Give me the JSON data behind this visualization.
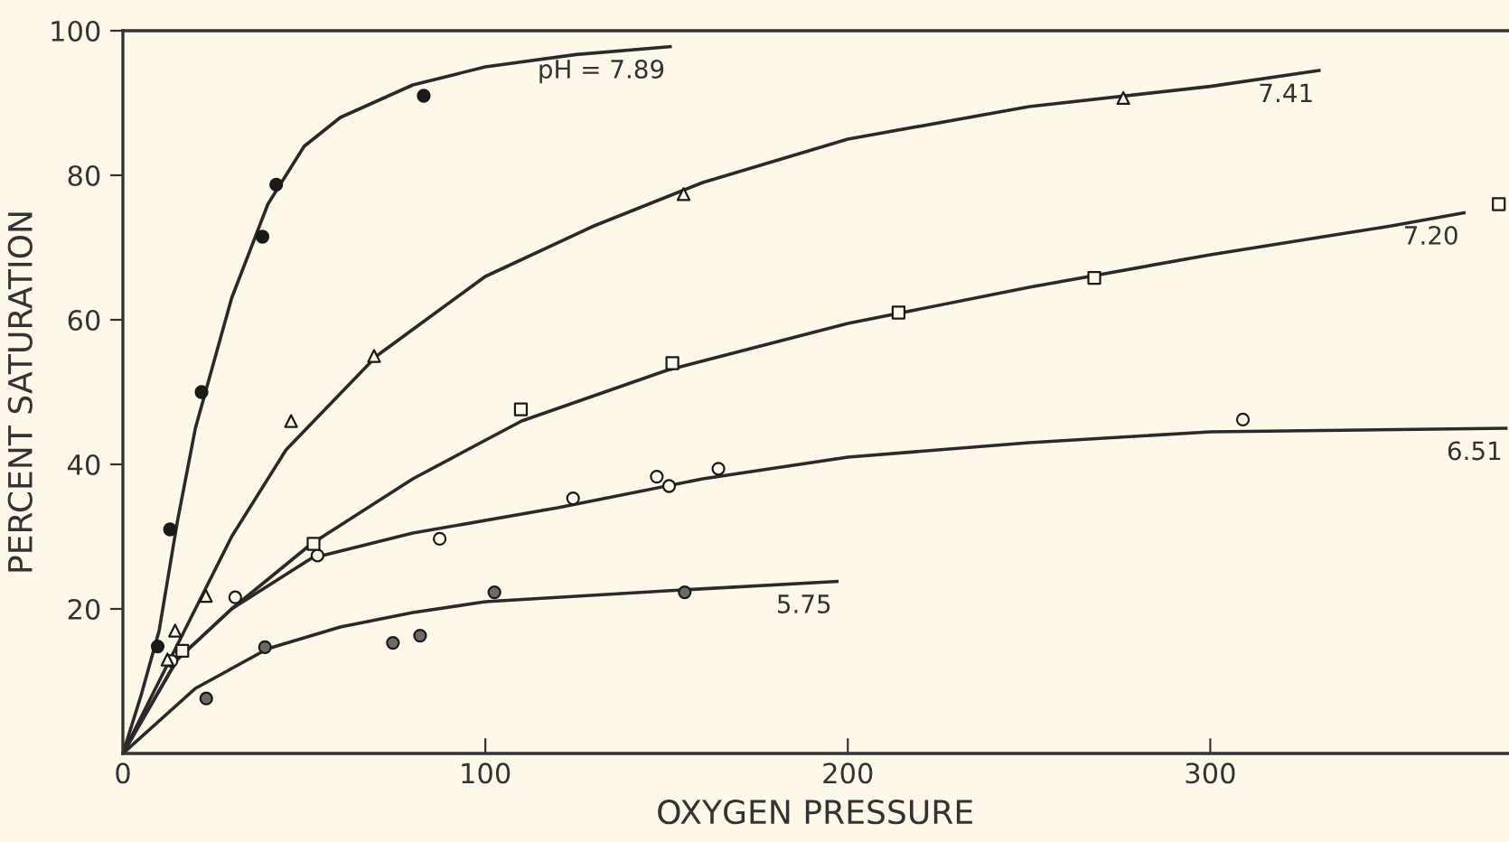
{
  "chart_data": {
    "type": "scatter",
    "xlabel": "OXYGEN PRESSURE",
    "ylabel": "PERCENT SATURATION",
    "xlim": [
      0,
      382
    ],
    "ylim": [
      0,
      100
    ],
    "xticks": [
      0,
      100,
      200,
      300
    ],
    "yticks": [
      20,
      40,
      60,
      80,
      100
    ],
    "grid": false,
    "legend": false,
    "series": [
      {
        "marker": "circle",
        "color": "#1a1a1a",
        "x": [
          9.6,
          13,
          21.7,
          38.5,
          42.3,
          83
        ],
        "values": [
          14.8,
          31,
          50,
          71.5,
          78.7,
          91
        ]
      },
      {
        "marker": "triangle",
        "color": "#fdf8e9",
        "x": [
          12.3,
          14.4,
          22.9,
          46.4,
          69.3,
          154.7,
          276
        ],
        "values": [
          13,
          17,
          21.8,
          46,
          55,
          77.4,
          90.7
        ]
      },
      {
        "marker": "square",
        "color": "#fdf8e9",
        "x": [
          16.4,
          52.6,
          109.8,
          151.6,
          214,
          268,
          379.6
        ],
        "values": [
          14.2,
          29,
          47.6,
          54,
          61,
          65.8,
          76
        ]
      },
      {
        "marker": "circle",
        "color": "#fdf8e9",
        "x": [
          13.4,
          31,
          53.7,
          87.4,
          124.2,
          147.3,
          150.7,
          164.3,
          309
        ],
        "values": [
          12.8,
          21.6,
          27.4,
          29.7,
          35.3,
          38.3,
          37,
          39.4,
          46.2
        ]
      },
      {
        "marker": "circle",
        "color": "#6a6a6a",
        "x": [
          23,
          39.2,
          74.5,
          82,
          102.5,
          155
        ],
        "values": [
          7.6,
          14.7,
          15.3,
          16.3,
          22.3,
          22.3
        ]
      },
      {
        "type": "line",
        "name": "pH = 7.89",
        "marker": "none",
        "color": "#2a2a2a",
        "x": [
          0,
          5,
          10,
          15,
          20,
          30,
          40,
          50,
          60,
          80,
          100,
          125,
          151
        ],
        "values": [
          0,
          8,
          17,
          32,
          45,
          63,
          76,
          84,
          88,
          92.5,
          95,
          96.7,
          97.8
        ]
      },
      {
        "type": "line",
        "name": "7.41",
        "marker": "none",
        "color": "#2a2a2a",
        "x": [
          0,
          10,
          20,
          30,
          45,
          70,
          100,
          130,
          160,
          200,
          250,
          300,
          330
        ],
        "values": [
          0,
          10,
          20,
          30,
          42,
          55,
          66,
          73,
          79,
          85,
          89.5,
          92.3,
          94.5
        ]
      },
      {
        "type": "line",
        "name": "7.20",
        "marker": "none",
        "color": "#2a2a2a",
        "x": [
          0,
          15,
          30,
          52,
          80,
          110,
          150,
          200,
          250,
          300,
          350,
          370
        ],
        "values": [
          0,
          13,
          20,
          29,
          38,
          46,
          53,
          59.5,
          64.5,
          69,
          73,
          74.8
        ]
      },
      {
        "type": "line",
        "name": "6.51",
        "marker": "none",
        "color": "#2a2a2a",
        "x": [
          0,
          15,
          30,
          52,
          80,
          120,
          160,
          200,
          250,
          300,
          382
        ],
        "values": [
          0,
          13,
          20,
          27,
          30.5,
          34,
          38,
          41,
          43,
          44.5,
          45
        ]
      },
      {
        "type": "line",
        "name": "5.75",
        "marker": "none",
        "color": "#2a2a2a",
        "x": [
          0,
          20,
          40,
          60,
          80,
          100,
          150,
          197
        ],
        "values": [
          0,
          9,
          14.5,
          17.5,
          19.5,
          21,
          22.5,
          23.8
        ]
      }
    ]
  }
}
